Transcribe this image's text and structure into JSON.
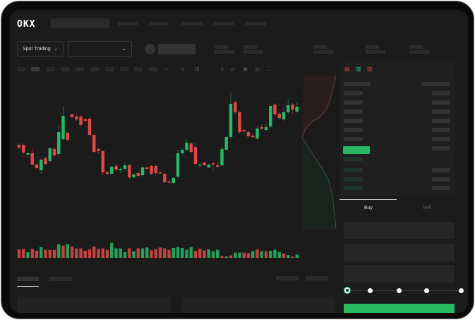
{
  "header": {
    "logo": "OKX"
  },
  "toolbar": {
    "market_selector": "Spot Trading",
    "chevron": "⌄"
  },
  "chart_icons": [
    "indicator-icon",
    "chart-type-icon",
    "interval-icon",
    "line-tool-icon",
    "ruler-icon",
    "camera-icon",
    "settings-icon",
    "fullscreen-icon"
  ],
  "orderbook_icons": [
    "orderbook-both-icon",
    "orderbook-buy-icon",
    "orderbook-sell-icon"
  ],
  "trade": {
    "tabs": [
      {
        "label": "Buy",
        "active": true
      },
      {
        "label": "Sell",
        "active": false
      }
    ],
    "slider_level": 0
  },
  "colors": {
    "up": "#26b865",
    "down": "#e04848",
    "background": "#1b1b1b",
    "accent": "#27b862"
  },
  "chart_data": {
    "type": "candlestick",
    "candles": [
      [
        97,
        93,
        99,
        91
      ],
      [
        97,
        86,
        99,
        84
      ],
      [
        83,
        85,
        87,
        81
      ],
      [
        85,
        69,
        92,
        67
      ],
      [
        69,
        64,
        71,
        62
      ],
      [
        61,
        76,
        78,
        56
      ],
      [
        78,
        70,
        80,
        68
      ],
      [
        74,
        92,
        94,
        72
      ],
      [
        91,
        82,
        93,
        80
      ],
      [
        84,
        115,
        124,
        82
      ],
      [
        105,
        138,
        152,
        103
      ],
      [
        114,
        104,
        116,
        102
      ],
      [
        140,
        136,
        142,
        134
      ],
      [
        137,
        133,
        142,
        131
      ],
      [
        137,
        125,
        139,
        123
      ],
      [
        133,
        131,
        135,
        129
      ],
      [
        134,
        111,
        136,
        109
      ],
      [
        111,
        87,
        113,
        85
      ],
      [
        91,
        88,
        93,
        84
      ],
      [
        88,
        58,
        90,
        54
      ],
      [
        58,
        56,
        60,
        54
      ],
      [
        56,
        66,
        68,
        54
      ],
      [
        67,
        62,
        70,
        60
      ],
      [
        61,
        63,
        65,
        57
      ],
      [
        63,
        68,
        72,
        61
      ],
      [
        68,
        51,
        70,
        48
      ],
      [
        51,
        55,
        57,
        49
      ],
      [
        57,
        53,
        59,
        50
      ],
      [
        54,
        65,
        68,
        52
      ],
      [
        65,
        63,
        66,
        61
      ],
      [
        67,
        56,
        69,
        54
      ],
      [
        67,
        57,
        69,
        52
      ],
      [
        58,
        57,
        59,
        56
      ],
      [
        56,
        44,
        58,
        43
      ],
      [
        45,
        44,
        47,
        43
      ],
      [
        43,
        50,
        52,
        42
      ],
      [
        52,
        85,
        90,
        50
      ],
      [
        85,
        90,
        93,
        83
      ],
      [
        90,
        100,
        105,
        88
      ],
      [
        99,
        87,
        101,
        85
      ],
      [
        94,
        70,
        99,
        68
      ],
      [
        68,
        69,
        72,
        65
      ],
      [
        72,
        68,
        73,
        67
      ],
      [
        65,
        69,
        70,
        64
      ],
      [
        71,
        70,
        72,
        60
      ],
      [
        68,
        66,
        73,
        65
      ],
      [
        68,
        91,
        95,
        66
      ],
      [
        90,
        108,
        111,
        89
      ],
      [
        108,
        155,
        171,
        106
      ],
      [
        157,
        143,
        160,
        140
      ],
      [
        143,
        115,
        145,
        112
      ],
      [
        118,
        116,
        120,
        114
      ],
      [
        115,
        109,
        117,
        107
      ],
      [
        110,
        108,
        113,
        106
      ],
      [
        106,
        120,
        124,
        104
      ],
      [
        122,
        120,
        126,
        118
      ],
      [
        118,
        122,
        128,
        116
      ],
      [
        123,
        152,
        154,
        121
      ],
      [
        154,
        140,
        156,
        138
      ],
      [
        141,
        135,
        143,
        133
      ],
      [
        133,
        143,
        151,
        131
      ],
      [
        143,
        153,
        161,
        141
      ],
      [
        154,
        147,
        156,
        141
      ],
      [
        144,
        151,
        158,
        142
      ]
    ],
    "volume": [
      36,
      38,
      24,
      38,
      30,
      46,
      34,
      34,
      34,
      58,
      52,
      58,
      48,
      40,
      40,
      30,
      36,
      48,
      38,
      40,
      34,
      64,
      40,
      40,
      24,
      40,
      28,
      40,
      40,
      44,
      32,
      38,
      44,
      40,
      34,
      42,
      46,
      42,
      34,
      46,
      30,
      38,
      32,
      36,
      28,
      34,
      8,
      6,
      10,
      22,
      22,
      22,
      20,
      28,
      36,
      28,
      28,
      30,
      34,
      24,
      18,
      12,
      6,
      14
    ],
    "volume_up": [
      0,
      0,
      1,
      0,
      0,
      1,
      0,
      0,
      0,
      1,
      0,
      1,
      0,
      0,
      0,
      0,
      0,
      0,
      0,
      0,
      0,
      1,
      1,
      1,
      1,
      0,
      1,
      0,
      1,
      1,
      0,
      0,
      0,
      0,
      0,
      1,
      1,
      1,
      1,
      1,
      0,
      0,
      0,
      1,
      1,
      1,
      0,
      1,
      0,
      1,
      1,
      0,
      0,
      1,
      0,
      1,
      0,
      1,
      1,
      1,
      0,
      1,
      0,
      1
    ]
  }
}
